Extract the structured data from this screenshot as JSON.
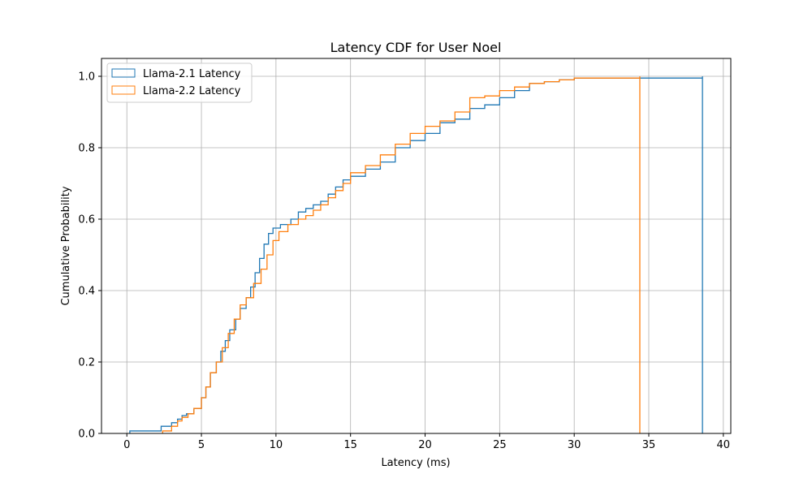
{
  "chart_data": {
    "type": "line",
    "title": "Latency CDF for User Noel",
    "xlabel": "Latency (ms)",
    "ylabel": "Cumulative Probability",
    "xlim": [
      -1.7,
      40.5
    ],
    "ylim": [
      0,
      1.05
    ],
    "xticks": [
      0,
      5,
      10,
      15,
      20,
      25,
      30,
      35,
      40
    ],
    "yticks": [
      0.0,
      0.2,
      0.4,
      0.6,
      0.8,
      1.0
    ],
    "xtick_labels": [
      "0",
      "5",
      "10",
      "15",
      "20",
      "25",
      "30",
      "35",
      "40"
    ],
    "ytick_labels": [
      "0.0",
      "0.2",
      "0.4",
      "0.6",
      "0.8",
      "1.0"
    ],
    "grid": true,
    "legend_position": "upper-left",
    "step_style": "cumulative-histogram",
    "series": [
      {
        "name": "Llama-2.1 Latency",
        "color": "#1f77b4",
        "points": [
          [
            0.2,
            0.0
          ],
          [
            0.2,
            0.007
          ],
          [
            2.0,
            0.007
          ],
          [
            2.3,
            0.02
          ],
          [
            3.0,
            0.03
          ],
          [
            3.4,
            0.04
          ],
          [
            3.7,
            0.05
          ],
          [
            4.0,
            0.055
          ],
          [
            4.5,
            0.07
          ],
          [
            5.0,
            0.1
          ],
          [
            5.3,
            0.13
          ],
          [
            5.6,
            0.17
          ],
          [
            6.0,
            0.2
          ],
          [
            6.3,
            0.23
          ],
          [
            6.6,
            0.26
          ],
          [
            6.9,
            0.29
          ],
          [
            7.3,
            0.32
          ],
          [
            7.6,
            0.35
          ],
          [
            8.0,
            0.38
          ],
          [
            8.3,
            0.41
          ],
          [
            8.6,
            0.45
          ],
          [
            8.9,
            0.49
          ],
          [
            9.2,
            0.53
          ],
          [
            9.5,
            0.56
          ],
          [
            9.8,
            0.575
          ],
          [
            10.3,
            0.585
          ],
          [
            11.0,
            0.6
          ],
          [
            11.5,
            0.62
          ],
          [
            12.0,
            0.63
          ],
          [
            12.5,
            0.64
          ],
          [
            13.0,
            0.65
          ],
          [
            13.5,
            0.67
          ],
          [
            14.0,
            0.69
          ],
          [
            14.5,
            0.71
          ],
          [
            15.0,
            0.72
          ],
          [
            16.0,
            0.74
          ],
          [
            17.0,
            0.76
          ],
          [
            18.0,
            0.8
          ],
          [
            19.0,
            0.82
          ],
          [
            20.0,
            0.84
          ],
          [
            21.0,
            0.87
          ],
          [
            22.0,
            0.88
          ],
          [
            23.0,
            0.91
          ],
          [
            24.0,
            0.92
          ],
          [
            25.0,
            0.94
          ],
          [
            26.0,
            0.96
          ],
          [
            27.0,
            0.98
          ],
          [
            28.0,
            0.985
          ],
          [
            29.0,
            0.99
          ],
          [
            30.0,
            0.995
          ],
          [
            38.6,
            0.995
          ],
          [
            38.6,
            1.0
          ],
          [
            38.6,
            0.0
          ]
        ]
      },
      {
        "name": "Llama-2.2 Latency",
        "color": "#ff7f0e",
        "points": [
          [
            2.4,
            0.0
          ],
          [
            2.4,
            0.007
          ],
          [
            3.0,
            0.02
          ],
          [
            3.4,
            0.035
          ],
          [
            3.7,
            0.045
          ],
          [
            4.1,
            0.055
          ],
          [
            4.5,
            0.07
          ],
          [
            5.0,
            0.1
          ],
          [
            5.3,
            0.13
          ],
          [
            5.6,
            0.17
          ],
          [
            6.0,
            0.2
          ],
          [
            6.4,
            0.24
          ],
          [
            6.8,
            0.28
          ],
          [
            7.2,
            0.32
          ],
          [
            7.6,
            0.36
          ],
          [
            8.0,
            0.38
          ],
          [
            8.5,
            0.42
          ],
          [
            9.0,
            0.46
          ],
          [
            9.4,
            0.5
          ],
          [
            9.8,
            0.54
          ],
          [
            10.2,
            0.565
          ],
          [
            10.8,
            0.585
          ],
          [
            11.5,
            0.6
          ],
          [
            12.0,
            0.61
          ],
          [
            12.5,
            0.625
          ],
          [
            13.0,
            0.64
          ],
          [
            13.5,
            0.66
          ],
          [
            14.0,
            0.68
          ],
          [
            14.5,
            0.7
          ],
          [
            15.0,
            0.73
          ],
          [
            16.0,
            0.75
          ],
          [
            17.0,
            0.78
          ],
          [
            18.0,
            0.81
          ],
          [
            19.0,
            0.84
          ],
          [
            20.0,
            0.86
          ],
          [
            21.0,
            0.875
          ],
          [
            22.0,
            0.9
          ],
          [
            23.0,
            0.94
          ],
          [
            24.0,
            0.945
          ],
          [
            25.0,
            0.96
          ],
          [
            26.0,
            0.97
          ],
          [
            27.0,
            0.98
          ],
          [
            28.0,
            0.985
          ],
          [
            29.0,
            0.99
          ],
          [
            30.0,
            0.995
          ],
          [
            34.4,
            0.995
          ],
          [
            34.4,
            1.0
          ],
          [
            34.4,
            0.0
          ]
        ]
      }
    ]
  }
}
